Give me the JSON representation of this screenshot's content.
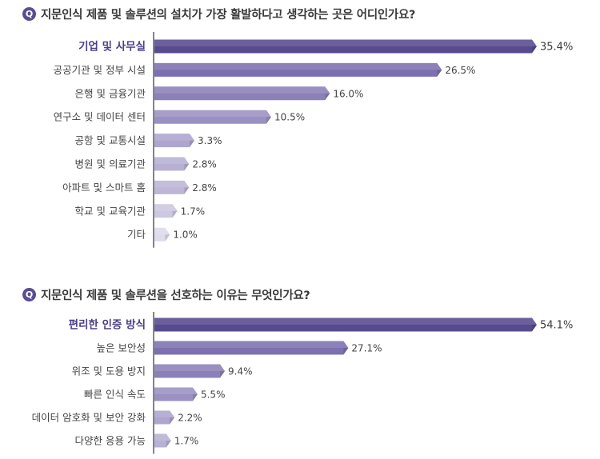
{
  "questions": [
    {
      "badge": "Q",
      "text": "지문인식 제품 및 솔루션의 설치가 가장 활발하다고 생각하는 곳은 어디인가요?"
    },
    {
      "badge": "Q",
      "text": "지문인식 제품 및 솔루션을 선호하는 이유는 무엇인가요?"
    }
  ],
  "colors": {
    "top_bar": "#574a8f",
    "bar_shades": [
      "#574a8f",
      "#7d70b0",
      "#8b80b8",
      "#9a90c2",
      "#aea6ce",
      "#b8b1d4",
      "#bdb6d7",
      "#cdc8e1",
      "#dedbeb"
    ],
    "axis": "#333333",
    "badge": "#5a4d91"
  },
  "chart_data": [
    {
      "type": "bar",
      "orientation": "horizontal",
      "categories": [
        "기업 및 사무실",
        "공공기관 및 정부 시설",
        "은행 및 금융기관",
        "연구소 및 데이터 센터",
        "공항 및 교통시설",
        "병원 및 의료기관",
        "아파트 및 스마트 홈",
        "학교 및 교육기관",
        "기타"
      ],
      "values": [
        35.4,
        26.5,
        16.0,
        10.5,
        3.3,
        2.8,
        2.8,
        1.7,
        1.0
      ],
      "value_labels": [
        "35.4%",
        "26.5%",
        "16.0%",
        "10.5%",
        "3.3%",
        "2.8%",
        "2.8%",
        "1.7%",
        "1.0%"
      ],
      "unit": "%",
      "xlim": [
        0,
        35.4
      ],
      "grid": false,
      "legend": "none"
    },
    {
      "type": "bar",
      "orientation": "horizontal",
      "categories": [
        "편리한 인증 방식",
        "높은 보안성",
        "위조 및 도용 방지",
        "빠른 인식 속도",
        "데이터 암호화 및 보안 강화",
        "다양한 응용 가능"
      ],
      "values": [
        54.1,
        27.1,
        9.4,
        5.5,
        2.2,
        1.7
      ],
      "value_labels": [
        "54.1%",
        "27.1%",
        "9.4%",
        "5.5%",
        "2.2%",
        "1.7%"
      ],
      "unit": "%",
      "xlim": [
        0,
        54.1
      ],
      "grid": false,
      "legend": "none"
    }
  ]
}
